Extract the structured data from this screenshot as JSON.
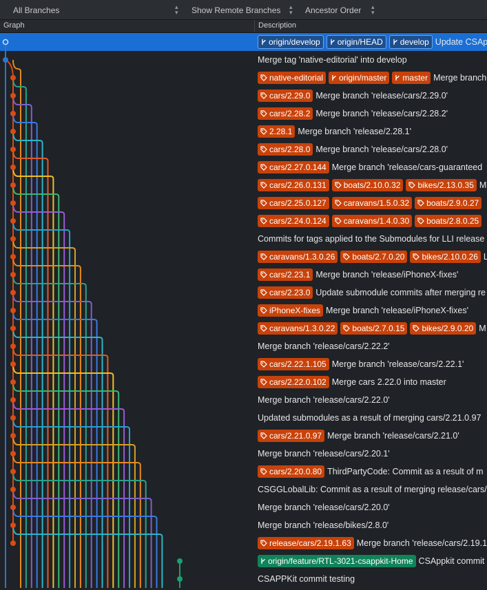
{
  "toolbar": [
    "All Branches",
    "Show Remote Branches",
    "Ancestor Order"
  ],
  "columns": [
    "Graph",
    "Description"
  ],
  "rows": [
    {
      "refs": [
        {
          "label": "origin/develop",
          "icon": "branch",
          "color": "#1d4f8f"
        },
        {
          "label": "origin/HEAD",
          "icon": "branch",
          "color": "#1d4f8f"
        },
        {
          "label": "develop",
          "icon": "branch",
          "color": "#1d4f8f"
        }
      ],
      "message": "Update CSApp",
      "selected": true
    },
    {
      "message": "Merge tag 'native-editorial' into develop"
    },
    {
      "refs": [
        {
          "label": "native-editorial",
          "icon": "tag",
          "color": "#c8420a"
        },
        {
          "label": "origin/master",
          "icon": "branch",
          "color": "#c8420a"
        },
        {
          "label": "master",
          "icon": "branch",
          "color": "#c8420a"
        }
      ],
      "message": "Merge branch"
    },
    {
      "refs": [
        {
          "label": "cars/2.29.0",
          "icon": "tag",
          "color": "#c8420a"
        }
      ],
      "message": "Merge branch 'release/cars/2.29.0'"
    },
    {
      "refs": [
        {
          "label": "cars/2.28.2",
          "icon": "tag",
          "color": "#c8420a"
        }
      ],
      "message": "Merge branch 'release/cars/2.28.2'"
    },
    {
      "refs": [
        {
          "label": "2.28.1",
          "icon": "tag",
          "color": "#c8420a"
        }
      ],
      "message": "Merge branch 'release/2.28.1'"
    },
    {
      "refs": [
        {
          "label": "cars/2.28.0",
          "icon": "tag",
          "color": "#c8420a"
        }
      ],
      "message": "Merge branch 'release/cars/2.28.0'"
    },
    {
      "refs": [
        {
          "label": "cars/2.27.0.144",
          "icon": "tag",
          "color": "#c8420a"
        }
      ],
      "message": "Merge branch 'release/cars-guaranteed"
    },
    {
      "refs": [
        {
          "label": "cars/2.26.0.131",
          "icon": "tag",
          "color": "#c8420a"
        },
        {
          "label": "boats/2.10.0.32",
          "icon": "tag",
          "color": "#c8420a"
        },
        {
          "label": "bikes/2.13.0.35",
          "icon": "tag",
          "color": "#c8420a"
        }
      ],
      "message": "M"
    },
    {
      "refs": [
        {
          "label": "cars/2.25.0.127",
          "icon": "tag",
          "color": "#c8420a"
        },
        {
          "label": "caravans/1.5.0.32",
          "icon": "tag",
          "color": "#c8420a"
        },
        {
          "label": "boats/2.9.0.27",
          "icon": "tag",
          "color": "#c8420a"
        }
      ]
    },
    {
      "refs": [
        {
          "label": "cars/2.24.0.124",
          "icon": "tag",
          "color": "#c8420a"
        },
        {
          "label": "caravans/1.4.0.30",
          "icon": "tag",
          "color": "#c8420a"
        },
        {
          "label": "boats/2.8.0.25",
          "icon": "tag",
          "color": "#c8420a"
        }
      ]
    },
    {
      "message": "Commits for tags applied to the Submodules for LLI release"
    },
    {
      "refs": [
        {
          "label": "caravans/1.3.0.26",
          "icon": "tag",
          "color": "#c8420a"
        },
        {
          "label": "boats/2.7.0.20",
          "icon": "tag",
          "color": "#c8420a"
        },
        {
          "label": "bikes/2.10.0.26",
          "icon": "tag",
          "color": "#c8420a"
        }
      ],
      "message": "L"
    },
    {
      "refs": [
        {
          "label": "cars/2.23.1",
          "icon": "tag",
          "color": "#c8420a"
        }
      ],
      "message": "Merge branch 'release/iPhoneX-fixes'"
    },
    {
      "refs": [
        {
          "label": "cars/2.23.0",
          "icon": "tag",
          "color": "#c8420a"
        }
      ],
      "message": "Update submodule commits after merging re"
    },
    {
      "refs": [
        {
          "label": "iPhoneX-fixes",
          "icon": "tag",
          "color": "#c8420a"
        }
      ],
      "message": "Merge branch 'release/iPhoneX-fixes'"
    },
    {
      "refs": [
        {
          "label": "caravans/1.3.0.22",
          "icon": "tag",
          "color": "#c8420a"
        },
        {
          "label": "boats/2.7.0.15",
          "icon": "tag",
          "color": "#c8420a"
        },
        {
          "label": "bikes/2.9.0.20",
          "icon": "tag",
          "color": "#c8420a"
        }
      ],
      "message": "M"
    },
    {
      "message": "Merge branch 'release/cars/2.22.2'"
    },
    {
      "refs": [
        {
          "label": "cars/2.22.1.105",
          "icon": "tag",
          "color": "#c8420a"
        }
      ],
      "message": "Merge branch 'release/cars/2.22.1'"
    },
    {
      "refs": [
        {
          "label": "cars/2.22.0.102",
          "icon": "tag",
          "color": "#c8420a"
        }
      ],
      "message": "Merge cars 2.22.0 into master"
    },
    {
      "message": "Merge branch 'release/cars/2.22.0'"
    },
    {
      "message": "Updated submodules as a result of merging cars/2.21.0.97"
    },
    {
      "refs": [
        {
          "label": "cars/2.21.0.97",
          "icon": "tag",
          "color": "#c8420a"
        }
      ],
      "message": "Merge branch 'release/cars/2.21.0'"
    },
    {
      "message": "Merge branch 'release/cars/2.20.1'"
    },
    {
      "refs": [
        {
          "label": "cars/2.20.0.80",
          "icon": "tag",
          "color": "#c8420a"
        }
      ],
      "message": "ThirdPartyCode: Commit as a result of m"
    },
    {
      "message": "CSGGLobalLib: Commit as a result of merging release/cars/"
    },
    {
      "message": "Merge branch 'release/cars/2.20.0'"
    },
    {
      "message": "Merge branch 'release/bikes/2.8.0'"
    },
    {
      "refs": [
        {
          "label": "release/cars/2.19.1.63",
          "icon": "tag",
          "color": "#c8420a"
        }
      ],
      "message": "Merge branch 'release/cars/2.19.1"
    },
    {
      "refs": [
        {
          "label": "origin/feature/RTL-3021-csappkit-Home",
          "icon": "branch",
          "color": "#11835a"
        }
      ],
      "message": "CSAppkit commit"
    },
    {
      "message": "CSAPPKit commit testing"
    }
  ]
}
